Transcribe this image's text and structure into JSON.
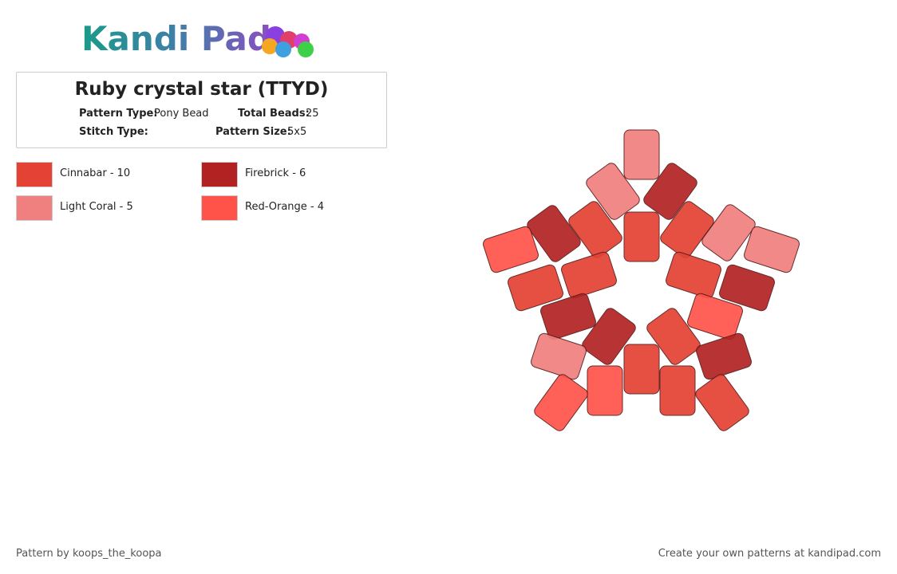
{
  "header": {
    "logo": "Kandi Pad"
  },
  "pattern": {
    "title": "Ruby crystal star (TTYD)",
    "pattern_type_label": "Pattern Type:",
    "pattern_type": "Pony Bead",
    "total_beads_label": "Total Beads:",
    "total_beads": "25",
    "stitch_type_label": "Stitch Type:",
    "pattern_size_label": "Pattern Size:",
    "pattern_size": "5x5"
  },
  "legend": [
    {
      "label": "Cinnabar - 10",
      "color": "#e34234"
    },
    {
      "label": "Firebrick - 6",
      "color": "#b22222"
    },
    {
      "label": "Light Coral - 5",
      "color": "#f08080"
    },
    {
      "label": "Red-Orange - 4",
      "color": "#ff5349"
    }
  ],
  "footer": {
    "left": "Pattern by koops_the_koopa",
    "right": "Create your own patterns at kandipad.com"
  }
}
